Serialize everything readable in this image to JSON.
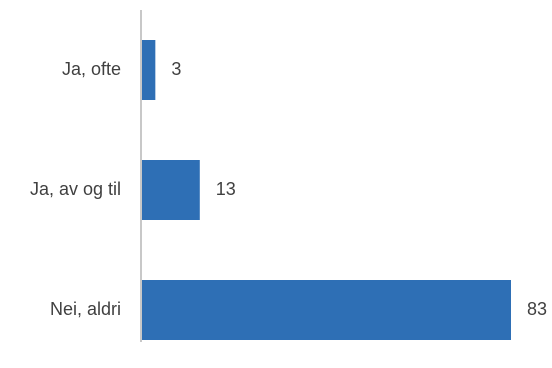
{
  "chart_data": {
    "type": "bar",
    "orientation": "horizontal",
    "categories": [
      "Ja, ofte",
      "Ja, av og til",
      "Nei, aldri"
    ],
    "values": [
      3,
      13,
      83
    ],
    "bar_color": "#2e6fb5",
    "axis_color": "#c8c8c8",
    "data_labels": true,
    "grid": false,
    "legend": false
  }
}
